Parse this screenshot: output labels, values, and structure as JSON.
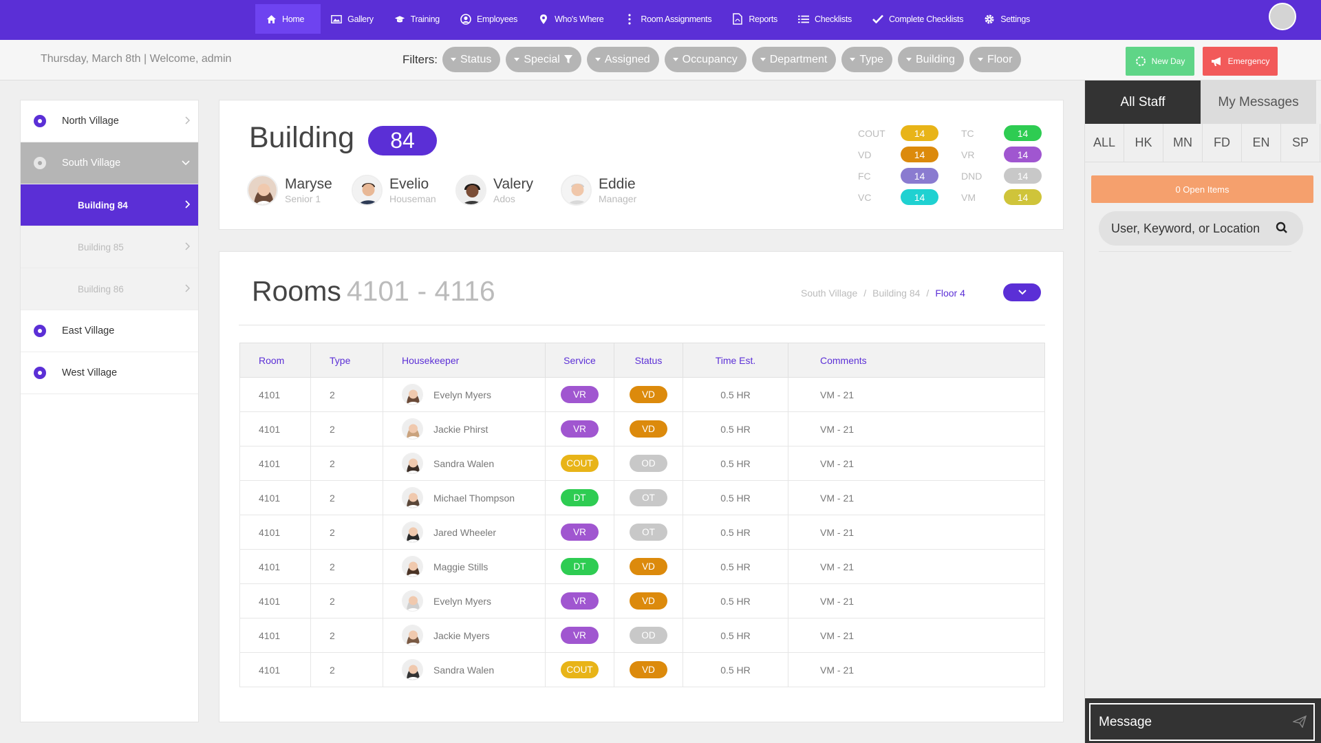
{
  "nav": {
    "items": [
      {
        "label": "Home",
        "icon": "home-icon"
      },
      {
        "label": "Gallery",
        "icon": "image-icon"
      },
      {
        "label": "Training",
        "icon": "graduation-cap-icon"
      },
      {
        "label": "Employees",
        "icon": "user-circle-icon"
      },
      {
        "label": "Who's Where",
        "icon": "map-pin-icon"
      },
      {
        "label": "Room Assignments",
        "icon": "vertical-dots-icon"
      },
      {
        "label": "Reports",
        "icon": "pdf-file-icon"
      },
      {
        "label": "Checklists",
        "icon": "list-icon"
      },
      {
        "label": "Complete Checklists",
        "icon": "checkmark-icon"
      },
      {
        "label": "Settings",
        "icon": "gear-icon"
      }
    ],
    "active": "Home"
  },
  "topbar": {
    "date_welcome": "Thursday, March 8th | Welcome, admin",
    "filters_label": "Filters:",
    "filters": [
      "Status",
      "Special",
      "Assigned",
      "Occupancy",
      "Department",
      "Type",
      "Building",
      "Floor"
    ],
    "new_day_label": "New Day",
    "emergency_label": "Emergency"
  },
  "sidebar": {
    "items": [
      {
        "label": "North Village"
      },
      {
        "label": "South Village"
      },
      {
        "label": "Building 84"
      },
      {
        "label": "Building 85"
      },
      {
        "label": "Building 86"
      },
      {
        "label": "East Village"
      },
      {
        "label": "West Village"
      }
    ]
  },
  "building": {
    "title": "Building",
    "number": "84",
    "staff": [
      {
        "name": "Maryse",
        "role": "Senior 1"
      },
      {
        "name": "Evelio",
        "role": "Houseman"
      },
      {
        "name": "Valery",
        "role": "Ados"
      },
      {
        "name": "Eddie",
        "role": "Manager"
      }
    ],
    "stats": [
      {
        "label": "COUT",
        "value": "14",
        "color": "#e8b418"
      },
      {
        "label": "VD",
        "value": "14",
        "color": "#dc8a0c"
      },
      {
        "label": "FC",
        "value": "14",
        "color": "#8a7bd0"
      },
      {
        "label": "VC",
        "value": "14",
        "color": "#1fd1d1"
      },
      {
        "label": "TC",
        "value": "14",
        "color": "#2ecc52"
      },
      {
        "label": "VR",
        "value": "14",
        "color": "#a056d0"
      },
      {
        "label": "DND",
        "value": "14",
        "color": "#c8c8c8"
      },
      {
        "label": "VM",
        "value": "14",
        "color": "#cfc43a"
      }
    ]
  },
  "rooms": {
    "title": "Rooms",
    "range": "4101 - 4116",
    "breadcrumb": [
      "South Village",
      "Building 84",
      "Floor 4"
    ],
    "columns": [
      "Room",
      "Type",
      "Housekeeper",
      "Service",
      "Status",
      "Time Est.",
      "Comments"
    ],
    "rows": [
      {
        "room": "4101",
        "type": "2",
        "housekeeper": "Evelyn Myers",
        "service": "VR",
        "status": "VD",
        "time": "0.5 HR",
        "comments": "VM - 21"
      },
      {
        "room": "4101",
        "type": "2",
        "housekeeper": "Jackie Phirst",
        "service": "VR",
        "status": "VD",
        "time": "0.5 HR",
        "comments": "VM - 21"
      },
      {
        "room": "4101",
        "type": "2",
        "housekeeper": "Sandra Walen",
        "service": "COUT",
        "status": "OD",
        "time": "0.5 HR",
        "comments": "VM - 21"
      },
      {
        "room": "4101",
        "type": "2",
        "housekeeper": "Michael Thompson",
        "service": "DT",
        "status": "OT",
        "time": "0.5 HR",
        "comments": "VM - 21"
      },
      {
        "room": "4101",
        "type": "2",
        "housekeeper": "Jared Wheeler",
        "service": "VR",
        "status": "OT",
        "time": "0.5 HR",
        "comments": "VM - 21"
      },
      {
        "room": "4101",
        "type": "2",
        "housekeeper": "Maggie Stills",
        "service": "DT",
        "status": "VD",
        "time": "0.5 HR",
        "comments": "VM - 21"
      },
      {
        "room": "4101",
        "type": "2",
        "housekeeper": "Evelyn Myers",
        "service": "VR",
        "status": "VD",
        "time": "0.5 HR",
        "comments": "VM - 21"
      },
      {
        "room": "4101",
        "type": "2",
        "housekeeper": "Jackie Myers",
        "service": "VR",
        "status": "OD",
        "time": "0.5 HR",
        "comments": "VM - 21"
      },
      {
        "room": "4101",
        "type": "2",
        "housekeeper": "Sandra Walen",
        "service": "COUT",
        "status": "VD",
        "time": "0.5 HR",
        "comments": "VM - 21"
      }
    ],
    "tag_colors": {
      "VR": "#a056d0",
      "COUT": "#e8b418",
      "DT": "#2ecc52",
      "VD": "#dc8a0c",
      "OD": "#c8c8c8",
      "OT": "#c8c8c8"
    }
  },
  "right_panel": {
    "tabs": [
      "All Staff",
      "My Messages"
    ],
    "dept_tabs": [
      "ALL",
      "HK",
      "MN",
      "FD",
      "EN",
      "SP"
    ],
    "open_items": "0 Open Items",
    "search_placeholder": "User, Keyword, or Location",
    "message_placeholder": "Message"
  }
}
